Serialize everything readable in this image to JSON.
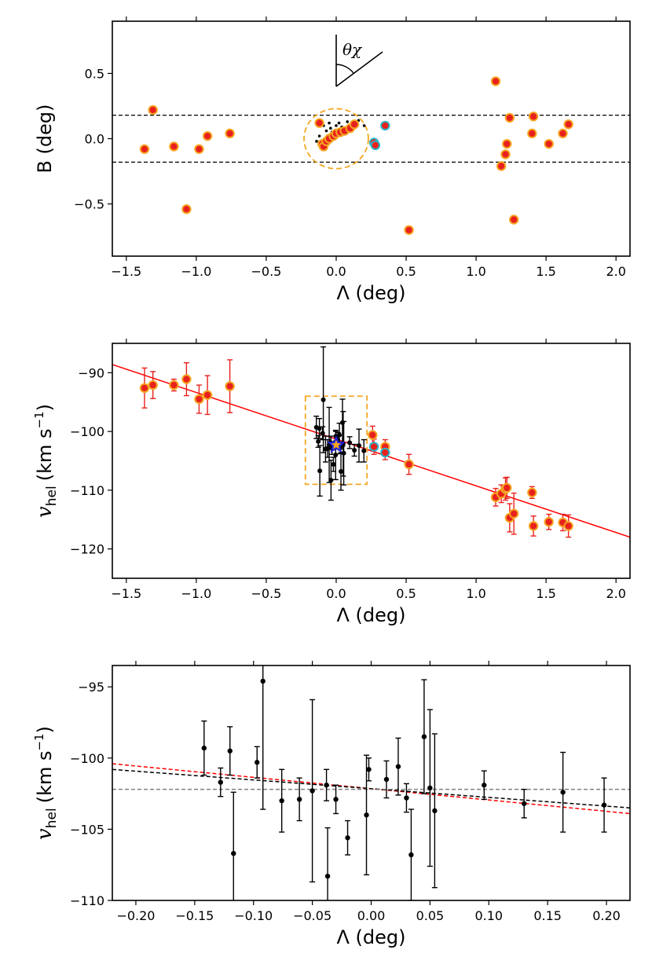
{
  "chart_data": [
    {
      "type": "scatter",
      "panel": "top",
      "xlabel": "Λ (deg)",
      "ylabel": "B (deg)",
      "xlim": [
        -1.6,
        2.1
      ],
      "ylim": [
        -0.9,
        0.9
      ],
      "xticks": [
        "−1.5",
        "−1.0",
        "−0.5",
        "0.0",
        "0.5",
        "1.0",
        "1.5",
        "2.0"
      ],
      "xtick_values": [
        -1.5,
        -1.0,
        -0.5,
        0.0,
        0.5,
        1.0,
        1.5,
        2.0
      ],
      "yticks": [
        "−0.5",
        "0.0",
        "0.5"
      ],
      "ytick_values": [
        -0.5,
        0.0,
        0.5
      ],
      "grid": false,
      "hlines": [
        0.18,
        -0.18
      ],
      "annotation": "θχ",
      "circle": {
        "center": [
          0.0,
          0.0
        ],
        "radius": 0.23,
        "color": "#f5a623"
      },
      "outer_members": [
        [
          -1.37,
          -0.08
        ],
        [
          -1.31,
          0.22
        ],
        [
          -1.16,
          -0.06
        ],
        [
          -1.07,
          -0.54
        ],
        [
          -0.98,
          -0.08
        ],
        [
          -0.92,
          0.02
        ],
        [
          -0.76,
          0.04
        ],
        [
          0.52,
          -0.7
        ],
        [
          1.14,
          0.44
        ],
        [
          1.18,
          -0.21
        ],
        [
          1.21,
          -0.12
        ],
        [
          1.22,
          -0.04
        ],
        [
          1.24,
          0.16
        ],
        [
          1.27,
          -0.62
        ],
        [
          1.4,
          0.04
        ],
        [
          1.41,
          0.17
        ],
        [
          1.52,
          -0.04
        ],
        [
          1.62,
          0.04
        ],
        [
          1.66,
          0.11
        ]
      ],
      "inner_members": [
        [
          -0.12,
          0.12
        ],
        [
          -0.1,
          -0.04
        ],
        [
          -0.09,
          -0.06
        ],
        [
          -0.07,
          -0.02
        ],
        [
          -0.05,
          0.0
        ],
        [
          -0.02,
          0.02
        ],
        [
          0.0,
          0.04
        ],
        [
          0.03,
          0.05
        ],
        [
          0.06,
          0.06
        ],
        [
          0.1,
          0.08
        ],
        [
          0.13,
          0.11
        ]
      ],
      "cyan_members": [
        [
          0.27,
          -0.03
        ],
        [
          0.28,
          -0.05
        ],
        [
          0.35,
          0.1
        ]
      ],
      "black_points": [
        [
          -0.14,
          -0.02
        ],
        [
          -0.12,
          0.02
        ],
        [
          -0.09,
          0.1
        ],
        [
          -0.07,
          0.06
        ],
        [
          -0.05,
          0.12
        ],
        [
          -0.04,
          0.08
        ],
        [
          -0.03,
          0.05
        ],
        [
          -0.01,
          0.04
        ],
        [
          0.0,
          0.1
        ],
        [
          0.02,
          0.12
        ],
        [
          0.04,
          0.09
        ],
        [
          0.05,
          0.07
        ],
        [
          0.08,
          0.13
        ],
        [
          0.11,
          0.12
        ],
        [
          0.16,
          0.14
        ],
        [
          0.2,
          0.1
        ]
      ]
    },
    {
      "type": "scatter",
      "panel": "middle",
      "xlabel": "Λ (deg)",
      "ylabel": "v",
      "ylabel_sub": "hel",
      "ylabel_unit": "(km s",
      "ylabel_sup": "−1",
      "ylabel_close": ")",
      "xlim": [
        -1.6,
        2.1
      ],
      "ylim": [
        -125,
        -85
      ],
      "xticks": [
        "−1.5",
        "−1.0",
        "−0.5",
        "0.0",
        "0.5",
        "1.0",
        "1.5",
        "2.0"
      ],
      "xtick_values": [
        -1.5,
        -1.0,
        -0.5,
        0.0,
        0.5,
        1.0,
        1.5,
        2.0
      ],
      "yticks": [
        "−120",
        "−110",
        "−100",
        "−90"
      ],
      "ytick_values": [
        -120,
        -110,
        -100,
        -90
      ],
      "grid": false,
      "fit_line": {
        "x": [
          -1.6,
          2.1
        ],
        "y": [
          -88.6,
          -118.0
        ],
        "color": "#ff0000"
      },
      "box": {
        "x": [
          -0.22,
          0.22
        ],
        "y": [
          -109.0,
          -94.0
        ],
        "color": "#f5a623"
      },
      "star": [
        0.0,
        -102.3
      ],
      "outer_members": [
        {
          "x": -1.37,
          "v": -92.6,
          "err": 3.4
        },
        {
          "x": -1.31,
          "v": -92.1,
          "err": 2.3
        },
        {
          "x": -1.16,
          "v": -92.1,
          "err": 1.0
        },
        {
          "x": -1.07,
          "v": -91.1,
          "err": 2.8
        },
        {
          "x": -0.98,
          "v": -94.5,
          "err": 2.4
        },
        {
          "x": -0.92,
          "v": -93.8,
          "err": 3.3
        },
        {
          "x": -0.76,
          "v": -92.3,
          "err": 4.5
        },
        {
          "x": 0.26,
          "v": -100.6,
          "err": 1.5
        },
        {
          "x": 0.35,
          "v": -102.6,
          "err": 1.2
        },
        {
          "x": 0.52,
          "v": -105.6,
          "err": 1.7
        },
        {
          "x": 1.14,
          "v": -111.2,
          "err": 1.5
        },
        {
          "x": 1.18,
          "v": -110.6,
          "err": 1.5
        },
        {
          "x": 1.21,
          "v": -109.8,
          "err": 1.9
        },
        {
          "x": 1.22,
          "v": -109.6,
          "err": 1.8
        },
        {
          "x": 1.24,
          "v": -114.7,
          "err": 2.4
        },
        {
          "x": 1.27,
          "v": -114.0,
          "err": 3.5
        },
        {
          "x": 1.4,
          "v": -110.4,
          "err": 1.0
        },
        {
          "x": 1.41,
          "v": -116.1,
          "err": 1.7
        },
        {
          "x": 1.52,
          "v": -115.4,
          "err": 1.3
        },
        {
          "x": 1.62,
          "v": -115.5,
          "err": 1.4
        },
        {
          "x": 1.66,
          "v": -116.1,
          "err": 1.9
        }
      ],
      "cyan_members": [
        {
          "x": 0.27,
          "v": -102.6,
          "err": 1.3
        },
        {
          "x": 0.35,
          "v": -103.6,
          "err": 1.2
        }
      ],
      "inner_points": [
        {
          "x": -0.142,
          "v": -99.3,
          "err": 1.9
        },
        {
          "x": -0.128,
          "v": -101.7,
          "err": 1.0
        },
        {
          "x": -0.12,
          "v": -99.5,
          "err": 1.7
        },
        {
          "x": -0.117,
          "v": -106.7,
          "err": 4.3
        },
        {
          "x": -0.097,
          "v": -100.3,
          "err": 1.1
        },
        {
          "x": -0.092,
          "v": -94.6,
          "err": 9.0
        },
        {
          "x": -0.076,
          "v": -103.0,
          "err": 2.2
        },
        {
          "x": -0.061,
          "v": -102.9,
          "err": 1.5
        },
        {
          "x": -0.05,
          "v": -102.3,
          "err": 6.4
        },
        {
          "x": -0.038,
          "v": -101.9,
          "err": 1.1
        },
        {
          "x": -0.037,
          "v": -108.3,
          "err": 3.4
        },
        {
          "x": -0.03,
          "v": -102.9,
          "err": 1.0
        },
        {
          "x": -0.02,
          "v": -105.6,
          "err": 1.2
        },
        {
          "x": -0.004,
          "v": -104.0,
          "err": 4.2
        },
        {
          "x": -0.002,
          "v": -100.8,
          "err": 0.8
        },
        {
          "x": 0.013,
          "v": -101.5,
          "err": 1.3
        },
        {
          "x": 0.023,
          "v": -100.6,
          "err": 2.0
        },
        {
          "x": 0.03,
          "v": -102.8,
          "err": 1.0
        },
        {
          "x": 0.034,
          "v": -106.8,
          "err": 3.2
        },
        {
          "x": 0.045,
          "v": -98.5,
          "err": 4.0
        },
        {
          "x": 0.05,
          "v": -102.1,
          "err": 5.5
        },
        {
          "x": 0.054,
          "v": -103.7,
          "err": 5.4
        },
        {
          "x": 0.096,
          "v": -101.9,
          "err": 1.0
        },
        {
          "x": 0.13,
          "v": -103.2,
          "err": 1.0
        },
        {
          "x": 0.163,
          "v": -102.4,
          "err": 2.8
        },
        {
          "x": 0.198,
          "v": -103.3,
          "err": 1.9
        }
      ]
    },
    {
      "type": "scatter",
      "panel": "bottom",
      "xlabel": "Λ (deg)",
      "ylabel": "v",
      "ylabel_sub": "hel",
      "ylabel_unit": "(km s",
      "ylabel_sup": "−1",
      "ylabel_close": ")",
      "xlim": [
        -0.22,
        0.22
      ],
      "ylim": [
        -110,
        -93.5
      ],
      "xticks": [
        "−0.20",
        "−0.15",
        "−0.10",
        "−0.05",
        "0.00",
        "0.05",
        "0.10",
        "0.15",
        "0.20"
      ],
      "xtick_values": [
        -0.2,
        -0.15,
        -0.1,
        -0.05,
        0.0,
        0.05,
        0.1,
        0.15,
        0.2
      ],
      "yticks": [
        "−110",
        "−105",
        "−100",
        "−95"
      ],
      "ytick_values": [
        -110,
        -105,
        -100,
        -95
      ],
      "grid": false,
      "lines": [
        {
          "name": "red",
          "x": [
            -0.22,
            0.22
          ],
          "y": [
            -100.4,
            -103.9
          ],
          "color": "#ff0000",
          "dash": true
        },
        {
          "name": "black",
          "x": [
            -0.22,
            0.22
          ],
          "y": [
            -100.8,
            -103.5
          ],
          "color": "#000000",
          "dash": true
        },
        {
          "name": "gray",
          "x": [
            -0.22,
            0.22
          ],
          "y": [
            -102.2,
            -102.2
          ],
          "color": "#808080",
          "dash": true
        }
      ],
      "points": [
        {
          "x": -0.142,
          "v": -99.3,
          "err": 1.9
        },
        {
          "x": -0.128,
          "v": -101.7,
          "err": 1.0
        },
        {
          "x": -0.12,
          "v": -99.5,
          "err": 1.7
        },
        {
          "x": -0.117,
          "v": -106.7,
          "err": 4.3
        },
        {
          "x": -0.097,
          "v": -100.3,
          "err": 1.1
        },
        {
          "x": -0.092,
          "v": -94.6,
          "err": 9.0
        },
        {
          "x": -0.076,
          "v": -103.0,
          "err": 2.2
        },
        {
          "x": -0.061,
          "v": -102.9,
          "err": 1.5
        },
        {
          "x": -0.05,
          "v": -102.3,
          "err": 6.4
        },
        {
          "x": -0.038,
          "v": -101.9,
          "err": 1.1
        },
        {
          "x": -0.037,
          "v": -108.3,
          "err": 3.4
        },
        {
          "x": -0.03,
          "v": -102.9,
          "err": 1.0
        },
        {
          "x": -0.02,
          "v": -105.6,
          "err": 1.2
        },
        {
          "x": -0.004,
          "v": -104.0,
          "err": 4.2
        },
        {
          "x": -0.002,
          "v": -100.8,
          "err": 0.8
        },
        {
          "x": 0.013,
          "v": -101.5,
          "err": 1.3
        },
        {
          "x": 0.023,
          "v": -100.6,
          "err": 2.0
        },
        {
          "x": 0.03,
          "v": -102.8,
          "err": 1.0
        },
        {
          "x": 0.034,
          "v": -106.8,
          "err": 3.2
        },
        {
          "x": 0.045,
          "v": -98.5,
          "err": 4.0
        },
        {
          "x": 0.05,
          "v": -102.1,
          "err": 5.5
        },
        {
          "x": 0.054,
          "v": -103.7,
          "err": 5.4
        },
        {
          "x": 0.096,
          "v": -101.9,
          "err": 1.0
        },
        {
          "x": 0.13,
          "v": -103.2,
          "err": 1.0
        },
        {
          "x": 0.163,
          "v": -102.4,
          "err": 2.8
        },
        {
          "x": 0.198,
          "v": -103.3,
          "err": 1.9
        }
      ]
    }
  ]
}
